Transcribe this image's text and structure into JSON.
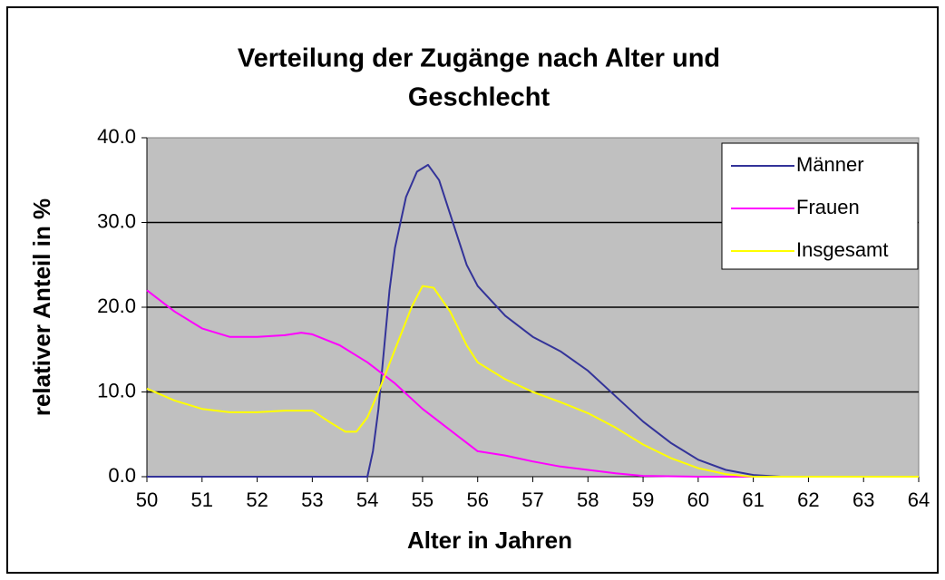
{
  "chart_data": {
    "type": "line",
    "title": [
      "Verteilung der Zugänge nach Alter und",
      "Geschlecht"
    ],
    "xlabel": "Alter in Jahren",
    "ylabel": "relativer Anteil in %",
    "xlim": [
      50,
      64
    ],
    "xticks": [
      50,
      51,
      52,
      53,
      54,
      55,
      56,
      57,
      58,
      59,
      60,
      61,
      62,
      63,
      64
    ],
    "ylim": [
      0,
      40
    ],
    "yticks": [
      {
        "value": 0,
        "label": "0.0"
      },
      {
        "value": 10,
        "label": "10.0"
      },
      {
        "value": 20,
        "label": "20.0"
      },
      {
        "value": 30,
        "label": "30.0"
      },
      {
        "value": 40,
        "label": "40.0"
      }
    ],
    "grid": true,
    "legend": "upper right",
    "series": [
      {
        "name": "Männer",
        "color": "#333399",
        "x": [
          50,
          51,
          52,
          53,
          54,
          54.1,
          54.2,
          54.3,
          54.4,
          54.5,
          54.7,
          54.9,
          55.1,
          55.3,
          55.5,
          55.8,
          56,
          56.5,
          57,
          57.5,
          58,
          58.5,
          59,
          59.5,
          60,
          60.5,
          61,
          61.5,
          62,
          63,
          64
        ],
        "values": [
          0,
          0,
          0,
          0,
          0,
          3,
          8,
          15,
          22,
          27,
          33,
          36,
          36.8,
          35,
          31,
          25,
          22.5,
          19,
          16.5,
          14.8,
          12.5,
          9.5,
          6.5,
          4,
          2,
          0.8,
          0.2,
          0,
          0,
          0,
          0
        ]
      },
      {
        "name": "Frauen",
        "color": "#ff00ff",
        "x": [
          50,
          50.5,
          51,
          51.5,
          52,
          52.5,
          52.8,
          53,
          53.5,
          54,
          54.5,
          55,
          55.5,
          56,
          56.5,
          57,
          57.5,
          58,
          58.5,
          59,
          60,
          61,
          62,
          63,
          64
        ],
        "values": [
          22,
          19.5,
          17.5,
          16.5,
          16.5,
          16.7,
          17,
          16.8,
          15.5,
          13.5,
          11,
          8,
          5.5,
          3,
          2.5,
          1.8,
          1.2,
          0.8,
          0.4,
          0.1,
          0,
          0,
          0,
          0,
          0
        ]
      },
      {
        "name": "Insgesamt",
        "color": "#ffff00",
        "x": [
          50,
          50.5,
          51,
          51.5,
          52,
          52.5,
          53,
          53.3,
          53.6,
          53.8,
          54,
          54.2,
          54.5,
          54.8,
          55,
          55.2,
          55.5,
          55.8,
          56,
          56.5,
          57,
          57.5,
          58,
          58.5,
          59,
          59.5,
          60,
          60.5,
          61,
          62,
          63,
          64
        ],
        "values": [
          10.4,
          9,
          8,
          7.6,
          7.6,
          7.8,
          7.8,
          6.5,
          5.3,
          5.3,
          7,
          10,
          15,
          20,
          22.5,
          22.3,
          19.5,
          15.5,
          13.5,
          11.5,
          10,
          8.8,
          7.5,
          5.8,
          3.8,
          2.2,
          1,
          0.3,
          0,
          0,
          0,
          0
        ]
      }
    ]
  }
}
